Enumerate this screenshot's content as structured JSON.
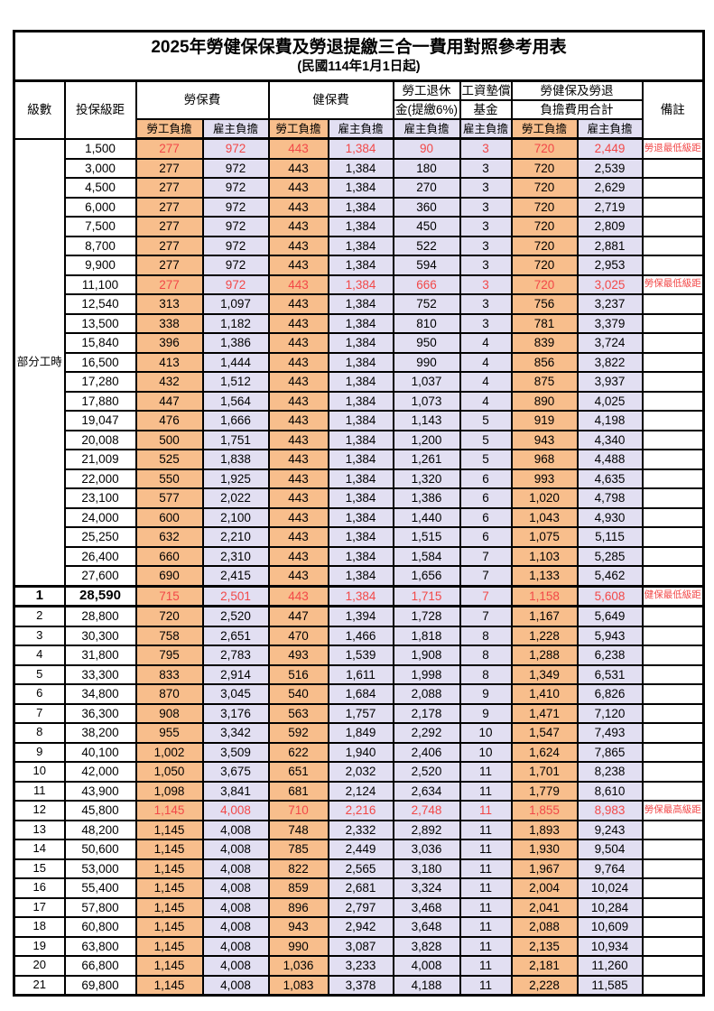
{
  "title": "2025年勞健保保費及勞退提繳三合一費用對照參考用表",
  "subtitle": "(民國114年1月1日起)",
  "colors": {
    "employee_bg": "#F8BE8C",
    "employer_bg": "#E2DFF2",
    "highlight_red": "#F24848",
    "border": "#000000"
  },
  "header": {
    "level": "級數",
    "bracket": "投保級距",
    "labor_fee": "勞保費",
    "health_fee": "健保費",
    "pension_line1": "勞工退休",
    "pension_line2": "金(提繳6%)",
    "wage_fund_line1": "工資墊償",
    "wage_fund_line2": "基金",
    "total_line1": "勞健保及勞退",
    "total_line2": "負擔費用合計",
    "remark": "備註",
    "employee": "勞工負擔",
    "employer": "雇主負擔"
  },
  "part_time_label": "部分工時",
  "part_time_rowspan": 23,
  "rows": [
    {
      "level": null,
      "bracket": "1,500",
      "v": [
        "277",
        "972",
        "443",
        "1,384",
        "90",
        "3",
        "720",
        "2,449"
      ],
      "remark": "勞退最低級距",
      "cls": "hl"
    },
    {
      "level": null,
      "bracket": "3,000",
      "v": [
        "277",
        "972",
        "443",
        "1,384",
        "180",
        "3",
        "720",
        "2,539"
      ],
      "remark": "",
      "cls": ""
    },
    {
      "level": null,
      "bracket": "4,500",
      "v": [
        "277",
        "972",
        "443",
        "1,384",
        "270",
        "3",
        "720",
        "2,629"
      ],
      "remark": "",
      "cls": ""
    },
    {
      "level": null,
      "bracket": "6,000",
      "v": [
        "277",
        "972",
        "443",
        "1,384",
        "360",
        "3",
        "720",
        "2,719"
      ],
      "remark": "",
      "cls": ""
    },
    {
      "level": null,
      "bracket": "7,500",
      "v": [
        "277",
        "972",
        "443",
        "1,384",
        "450",
        "3",
        "720",
        "2,809"
      ],
      "remark": "",
      "cls": ""
    },
    {
      "level": null,
      "bracket": "8,700",
      "v": [
        "277",
        "972",
        "443",
        "1,384",
        "522",
        "3",
        "720",
        "2,881"
      ],
      "remark": "",
      "cls": ""
    },
    {
      "level": null,
      "bracket": "9,900",
      "v": [
        "277",
        "972",
        "443",
        "1,384",
        "594",
        "3",
        "720",
        "2,953"
      ],
      "remark": "",
      "cls": ""
    },
    {
      "level": null,
      "bracket": "11,100",
      "v": [
        "277",
        "972",
        "443",
        "1,384",
        "666",
        "3",
        "720",
        "3,025"
      ],
      "remark": "勞保最低級距",
      "cls": "hl"
    },
    {
      "level": null,
      "bracket": "12,540",
      "v": [
        "313",
        "1,097",
        "443",
        "1,384",
        "752",
        "3",
        "756",
        "3,237"
      ],
      "remark": "",
      "cls": ""
    },
    {
      "level": null,
      "bracket": "13,500",
      "v": [
        "338",
        "1,182",
        "443",
        "1,384",
        "810",
        "3",
        "781",
        "3,379"
      ],
      "remark": "",
      "cls": ""
    },
    {
      "level": null,
      "bracket": "15,840",
      "v": [
        "396",
        "1,386",
        "443",
        "1,384",
        "950",
        "4",
        "839",
        "3,724"
      ],
      "remark": "",
      "cls": ""
    },
    {
      "level": null,
      "bracket": "16,500",
      "v": [
        "413",
        "1,444",
        "443",
        "1,384",
        "990",
        "4",
        "856",
        "3,822"
      ],
      "remark": "",
      "cls": ""
    },
    {
      "level": null,
      "bracket": "17,280",
      "v": [
        "432",
        "1,512",
        "443",
        "1,384",
        "1,037",
        "4",
        "875",
        "3,937"
      ],
      "remark": "",
      "cls": ""
    },
    {
      "level": null,
      "bracket": "17,880",
      "v": [
        "447",
        "1,564",
        "443",
        "1,384",
        "1,073",
        "4",
        "890",
        "4,025"
      ],
      "remark": "",
      "cls": ""
    },
    {
      "level": null,
      "bracket": "19,047",
      "v": [
        "476",
        "1,666",
        "443",
        "1,384",
        "1,143",
        "5",
        "919",
        "4,198"
      ],
      "remark": "",
      "cls": ""
    },
    {
      "level": null,
      "bracket": "20,008",
      "v": [
        "500",
        "1,751",
        "443",
        "1,384",
        "1,200",
        "5",
        "943",
        "4,340"
      ],
      "remark": "",
      "cls": ""
    },
    {
      "level": null,
      "bracket": "21,009",
      "v": [
        "525",
        "1,838",
        "443",
        "1,384",
        "1,261",
        "5",
        "968",
        "4,488"
      ],
      "remark": "",
      "cls": ""
    },
    {
      "level": null,
      "bracket": "22,000",
      "v": [
        "550",
        "1,925",
        "443",
        "1,384",
        "1,320",
        "6",
        "993",
        "4,635"
      ],
      "remark": "",
      "cls": ""
    },
    {
      "level": null,
      "bracket": "23,100",
      "v": [
        "577",
        "2,022",
        "443",
        "1,384",
        "1,386",
        "6",
        "1,020",
        "4,798"
      ],
      "remark": "",
      "cls": ""
    },
    {
      "level": null,
      "bracket": "24,000",
      "v": [
        "600",
        "2,100",
        "443",
        "1,384",
        "1,440",
        "6",
        "1,043",
        "4,930"
      ],
      "remark": "",
      "cls": ""
    },
    {
      "level": null,
      "bracket": "25,250",
      "v": [
        "632",
        "2,210",
        "443",
        "1,384",
        "1,515",
        "6",
        "1,075",
        "5,115"
      ],
      "remark": "",
      "cls": ""
    },
    {
      "level": null,
      "bracket": "26,400",
      "v": [
        "660",
        "2,310",
        "443",
        "1,384",
        "1,584",
        "7",
        "1,103",
        "5,285"
      ],
      "remark": "",
      "cls": ""
    },
    {
      "level": null,
      "bracket": "27,600",
      "v": [
        "690",
        "2,415",
        "443",
        "1,384",
        "1,656",
        "7",
        "1,133",
        "5,462"
      ],
      "remark": "",
      "cls": ""
    },
    {
      "level": "1",
      "bracket": "28,590",
      "v": [
        "715",
        "2,501",
        "443",
        "1,384",
        "1,715",
        "7",
        "1,158",
        "5,608"
      ],
      "remark": "健保最低級距",
      "cls": "hl lvl1"
    },
    {
      "level": "2",
      "bracket": "28,800",
      "v": [
        "720",
        "2,520",
        "447",
        "1,394",
        "1,728",
        "7",
        "1,167",
        "5,649"
      ],
      "remark": "",
      "cls": ""
    },
    {
      "level": "3",
      "bracket": "30,300",
      "v": [
        "758",
        "2,651",
        "470",
        "1,466",
        "1,818",
        "8",
        "1,228",
        "5,943"
      ],
      "remark": "",
      "cls": ""
    },
    {
      "level": "4",
      "bracket": "31,800",
      "v": [
        "795",
        "2,783",
        "493",
        "1,539",
        "1,908",
        "8",
        "1,288",
        "6,238"
      ],
      "remark": "",
      "cls": ""
    },
    {
      "level": "5",
      "bracket": "33,300",
      "v": [
        "833",
        "2,914",
        "516",
        "1,611",
        "1,998",
        "8",
        "1,349",
        "6,531"
      ],
      "remark": "",
      "cls": ""
    },
    {
      "level": "6",
      "bracket": "34,800",
      "v": [
        "870",
        "3,045",
        "540",
        "1,684",
        "2,088",
        "9",
        "1,410",
        "6,826"
      ],
      "remark": "",
      "cls": ""
    },
    {
      "level": "7",
      "bracket": "36,300",
      "v": [
        "908",
        "3,176",
        "563",
        "1,757",
        "2,178",
        "9",
        "1,471",
        "7,120"
      ],
      "remark": "",
      "cls": ""
    },
    {
      "level": "8",
      "bracket": "38,200",
      "v": [
        "955",
        "3,342",
        "592",
        "1,849",
        "2,292",
        "10",
        "1,547",
        "7,493"
      ],
      "remark": "",
      "cls": ""
    },
    {
      "level": "9",
      "bracket": "40,100",
      "v": [
        "1,002",
        "3,509",
        "622",
        "1,940",
        "2,406",
        "10",
        "1,624",
        "7,865"
      ],
      "remark": "",
      "cls": ""
    },
    {
      "level": "10",
      "bracket": "42,000",
      "v": [
        "1,050",
        "3,675",
        "651",
        "2,032",
        "2,520",
        "11",
        "1,701",
        "8,238"
      ],
      "remark": "",
      "cls": ""
    },
    {
      "level": "11",
      "bracket": "43,900",
      "v": [
        "1,098",
        "3,841",
        "681",
        "2,124",
        "2,634",
        "11",
        "1,779",
        "8,610"
      ],
      "remark": "",
      "cls": ""
    },
    {
      "level": "12",
      "bracket": "45,800",
      "v": [
        "1,145",
        "4,008",
        "710",
        "2,216",
        "2,748",
        "11",
        "1,855",
        "8,983"
      ],
      "remark": "勞保最高級距",
      "cls": "hl"
    },
    {
      "level": "13",
      "bracket": "48,200",
      "v": [
        "1,145",
        "4,008",
        "748",
        "2,332",
        "2,892",
        "11",
        "1,893",
        "9,243"
      ],
      "remark": "",
      "cls": ""
    },
    {
      "level": "14",
      "bracket": "50,600",
      "v": [
        "1,145",
        "4,008",
        "785",
        "2,449",
        "3,036",
        "11",
        "1,930",
        "9,504"
      ],
      "remark": "",
      "cls": ""
    },
    {
      "level": "15",
      "bracket": "53,000",
      "v": [
        "1,145",
        "4,008",
        "822",
        "2,565",
        "3,180",
        "11",
        "1,967",
        "9,764"
      ],
      "remark": "",
      "cls": ""
    },
    {
      "level": "16",
      "bracket": "55,400",
      "v": [
        "1,145",
        "4,008",
        "859",
        "2,681",
        "3,324",
        "11",
        "2,004",
        "10,024"
      ],
      "remark": "",
      "cls": ""
    },
    {
      "level": "17",
      "bracket": "57,800",
      "v": [
        "1,145",
        "4,008",
        "896",
        "2,797",
        "3,468",
        "11",
        "2,041",
        "10,284"
      ],
      "remark": "",
      "cls": ""
    },
    {
      "level": "18",
      "bracket": "60,800",
      "v": [
        "1,145",
        "4,008",
        "943",
        "2,942",
        "3,648",
        "11",
        "2,088",
        "10,609"
      ],
      "remark": "",
      "cls": ""
    },
    {
      "level": "19",
      "bracket": "63,800",
      "v": [
        "1,145",
        "4,008",
        "990",
        "3,087",
        "3,828",
        "11",
        "2,135",
        "10,934"
      ],
      "remark": "",
      "cls": ""
    },
    {
      "level": "20",
      "bracket": "66,800",
      "v": [
        "1,145",
        "4,008",
        "1,036",
        "3,233",
        "4,008",
        "11",
        "2,181",
        "11,260"
      ],
      "remark": "",
      "cls": ""
    },
    {
      "level": "21",
      "bracket": "69,800",
      "v": [
        "1,145",
        "4,008",
        "1,083",
        "3,378",
        "4,188",
        "11",
        "2,228",
        "11,585"
      ],
      "remark": "",
      "cls": ""
    }
  ]
}
